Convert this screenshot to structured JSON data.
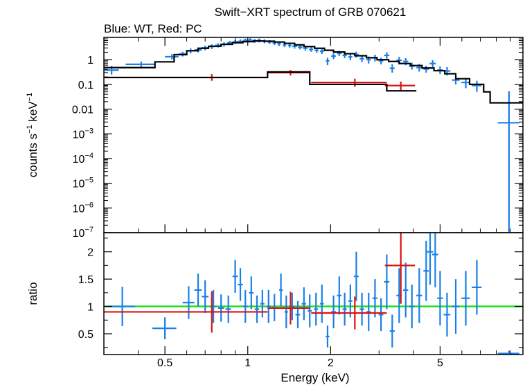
{
  "chart_data": [
    {
      "type": "scatter",
      "panel": "spectrum",
      "title": "Swift−XRT spectrum of GRB 070621",
      "subtitle": "Blue: WT, Red: PC",
      "xlabel": "Energy (keV)",
      "ylabel_main": "counts s",
      "ylabel_sup1": "−1",
      "ylabel_mid": " keV",
      "ylabel_sup2": "−1",
      "x_scale": "log",
      "y_scale": "log",
      "xlim": [
        0.3,
        10
      ],
      "ylim": [
        1e-07,
        8
      ],
      "yticks": [
        {
          "v": 1,
          "base": "1",
          "exp": ""
        },
        {
          "v": 0.1,
          "base": "0.1",
          "exp": ""
        },
        {
          "v": 0.01,
          "base": "0.01",
          "exp": ""
        },
        {
          "v": 0.001,
          "base": "10",
          "exp": "−3"
        },
        {
          "v": 0.0001,
          "base": "10",
          "exp": "−4"
        },
        {
          "v": 1e-05,
          "base": "10",
          "exp": "−5"
        },
        {
          "v": 1e-06,
          "base": "10",
          "exp": "−6"
        },
        {
          "v": 1e-07,
          "base": "10",
          "exp": "−7"
        }
      ],
      "series": [
        {
          "name": "WT",
          "color": "#1a7fe8",
          "points": [
            [
              0.32,
              0.02,
              0.38,
              0.18,
              0.13
            ],
            [
              0.41,
              0.05,
              0.65,
              0.2,
              0.15
            ],
            [
              0.53,
              0.03,
              1.32,
              0.35,
              0.3
            ],
            [
              0.58,
              0.02,
              1.7,
              0.4,
              0.35
            ],
            [
              0.62,
              0.02,
              2.3,
              0.6,
              0.5
            ],
            [
              0.66,
              0.02,
              2.5,
              0.6,
              0.5
            ],
            [
              0.7,
              0.02,
              3.0,
              0.7,
              0.6
            ],
            [
              0.74,
              0.02,
              3.4,
              0.8,
              0.7
            ],
            [
              0.78,
              0.02,
              3.8,
              0.8,
              0.7
            ],
            [
              0.82,
              0.02,
              4.2,
              0.9,
              0.8
            ],
            [
              0.86,
              0.02,
              4.8,
              1.0,
              0.9
            ],
            [
              0.9,
              0.02,
              5.2,
              1.0,
              0.9
            ],
            [
              0.94,
              0.02,
              5.5,
              1.1,
              1.0
            ],
            [
              0.98,
              0.02,
              6.0,
              1.2,
              1.0
            ],
            [
              1.02,
              0.02,
              6.2,
              1.2,
              1.0
            ],
            [
              1.06,
              0.02,
              5.8,
              1.1,
              1.0
            ],
            [
              1.1,
              0.02,
              6.0,
              1.2,
              1.0
            ],
            [
              1.15,
              0.02,
              5.6,
              1.1,
              1.0
            ],
            [
              1.2,
              0.02,
              5.2,
              1.0,
              0.9
            ],
            [
              1.25,
              0.02,
              4.8,
              1.0,
              0.9
            ],
            [
              1.3,
              0.02,
              4.4,
              0.9,
              0.8
            ],
            [
              1.36,
              0.02,
              4.0,
              0.9,
              0.8
            ],
            [
              1.42,
              0.02,
              3.8,
              0.8,
              0.7
            ],
            [
              1.48,
              0.03,
              3.5,
              0.8,
              0.7
            ],
            [
              1.55,
              0.03,
              3.2,
              0.7,
              0.6
            ],
            [
              1.62,
              0.03,
              2.9,
              0.7,
              0.6
            ],
            [
              1.7,
              0.03,
              2.6,
              0.6,
              0.5
            ],
            [
              1.78,
              0.03,
              2.4,
              0.6,
              0.5
            ],
            [
              1.86,
              0.03,
              2.2,
              0.6,
              0.5
            ],
            [
              1.95,
              0.03,
              0.9,
              0.3,
              0.3
            ],
            [
              2.05,
              0.04,
              1.4,
              0.4,
              0.35
            ],
            [
              2.15,
              0.04,
              1.8,
              0.5,
              0.4
            ],
            [
              2.25,
              0.04,
              1.5,
              0.4,
              0.35
            ],
            [
              2.36,
              0.04,
              1.3,
              0.4,
              0.35
            ],
            [
              2.48,
              0.05,
              1.6,
              0.5,
              0.4
            ],
            [
              2.6,
              0.05,
              1.1,
              0.35,
              0.3
            ],
            [
              2.75,
              0.05,
              1.0,
              0.35,
              0.3
            ],
            [
              2.9,
              0.06,
              1.2,
              0.4,
              0.35
            ],
            [
              3.05,
              0.06,
              0.9,
              0.3,
              0.25
            ],
            [
              3.2,
              0.07,
              1.5,
              0.5,
              0.4
            ],
            [
              3.35,
              0.07,
              0.45,
              0.2,
              0.15
            ],
            [
              3.55,
              0.08,
              0.95,
              0.35,
              0.3
            ],
            [
              3.75,
              0.08,
              0.85,
              0.3,
              0.25
            ],
            [
              3.95,
              0.09,
              0.55,
              0.2,
              0.15
            ],
            [
              4.2,
              0.1,
              0.48,
              0.2,
              0.15
            ],
            [
              4.45,
              0.1,
              0.42,
              0.15,
              0.12
            ],
            [
              4.7,
              0.12,
              0.7,
              0.25,
              0.2
            ],
            [
              5.0,
              0.12,
              0.38,
              0.15,
              0.12
            ],
            [
              5.3,
              0.15,
              0.35,
              0.15,
              0.12
            ],
            [
              5.7,
              0.18,
              0.15,
              0.07,
              0.05
            ],
            [
              6.2,
              0.22,
              0.12,
              0.06,
              0.05
            ],
            [
              6.8,
              0.28,
              0.09,
              0.05,
              0.04
            ],
            [
              8.9,
              0.8,
              0.0028,
              0.05,
              0.0028
            ]
          ]
        },
        {
          "name": "PC",
          "color": "#dd1111",
          "points": [
            [
              0.74,
              0.44,
              0.19,
              0.07,
              0.05
            ],
            [
              1.43,
              0.25,
              0.3,
              0.08,
              0.07
            ],
            [
              2.45,
              0.75,
              0.12,
              0.05,
              0.04
            ],
            [
              3.6,
              0.45,
              0.09,
              0.04,
              0.035
            ]
          ]
        }
      ],
      "model_wt": {
        "color": "#000000",
        "steps": [
          [
            0.3,
            0.48
          ],
          [
            0.38,
            0.48
          ],
          [
            0.46,
            0.82
          ],
          [
            0.54,
            1.6
          ],
          [
            0.6,
            2.3
          ],
          [
            0.66,
            2.9
          ],
          [
            0.72,
            3.5
          ],
          [
            0.8,
            4.2
          ],
          [
            0.88,
            4.9
          ],
          [
            0.96,
            5.4
          ],
          [
            1.05,
            5.7
          ],
          [
            1.15,
            5.6
          ],
          [
            1.25,
            5.2
          ],
          [
            1.36,
            4.6
          ],
          [
            1.48,
            4.0
          ],
          [
            1.6,
            3.4
          ],
          [
            1.75,
            2.9
          ],
          [
            1.9,
            2.4
          ],
          [
            2.05,
            2.05
          ],
          [
            2.25,
            1.75
          ],
          [
            2.45,
            1.45
          ],
          [
            2.7,
            1.2
          ],
          [
            2.95,
            1.0
          ],
          [
            3.25,
            0.85
          ],
          [
            3.55,
            0.7
          ],
          [
            3.9,
            0.58
          ],
          [
            4.3,
            0.46
          ],
          [
            4.75,
            0.36
          ],
          [
            5.2,
            0.27
          ],
          [
            5.7,
            0.17
          ],
          [
            6.4,
            0.1
          ],
          [
            7.2,
            0.05
          ],
          [
            7.6,
            0.018
          ],
          [
            10,
            0.018
          ]
        ]
      },
      "model_pc": {
        "color": "#000000",
        "steps": [
          [
            0.3,
            0.19
          ],
          [
            1.18,
            0.19
          ],
          [
            1.18,
            0.32
          ],
          [
            1.68,
            0.32
          ],
          [
            1.68,
            0.1
          ],
          [
            3.2,
            0.1
          ],
          [
            3.2,
            0.055
          ],
          [
            4.1,
            0.055
          ]
        ]
      }
    },
    {
      "type": "scatter",
      "panel": "ratio",
      "ylabel": "ratio",
      "x_scale": "log",
      "xlim": [
        0.3,
        10
      ],
      "ylim": [
        0.12,
        2.35
      ],
      "yticks": [
        0.5,
        1,
        1.5,
        2
      ],
      "xticks": [
        {
          "v": 0.5,
          "label": "0.5"
        },
        {
          "v": 1,
          "label": "1"
        },
        {
          "v": 2,
          "label": "2"
        },
        {
          "v": 5,
          "label": "5"
        }
      ],
      "reference_line": {
        "value": 1,
        "color": "#22dd22"
      },
      "series": [
        {
          "name": "WT",
          "color": "#1a7fe8",
          "points": [
            [
              0.35,
              0.04,
              1.0,
              0.36,
              0.36
            ],
            [
              0.5,
              0.05,
              0.6,
              0.2,
              0.2
            ],
            [
              0.61,
              0.03,
              1.07,
              0.3,
              0.3
            ],
            [
              0.66,
              0.02,
              1.3,
              0.3,
              0.3
            ],
            [
              0.7,
              0.02,
              1.18,
              0.3,
              0.3
            ],
            [
              0.75,
              0.02,
              1.0,
              0.3,
              0.3
            ],
            [
              0.8,
              0.02,
              0.97,
              0.25,
              0.25
            ],
            [
              0.85,
              0.02,
              0.95,
              0.25,
              0.25
            ],
            [
              0.9,
              0.02,
              1.55,
              0.3,
              0.3
            ],
            [
              0.94,
              0.02,
              1.4,
              0.3,
              0.3
            ],
            [
              0.98,
              0.02,
              1.0,
              0.3,
              0.3
            ],
            [
              1.03,
              0.02,
              1.25,
              0.3,
              0.3
            ],
            [
              1.08,
              0.02,
              0.95,
              0.25,
              0.25
            ],
            [
              1.13,
              0.02,
              1.05,
              0.25,
              0.25
            ],
            [
              1.19,
              0.02,
              1.0,
              0.3,
              0.3
            ],
            [
              1.25,
              0.02,
              0.98,
              0.25,
              0.25
            ],
            [
              1.32,
              0.02,
              1.3,
              0.3,
              0.3
            ],
            [
              1.38,
              0.02,
              0.9,
              0.3,
              0.3
            ],
            [
              1.45,
              0.03,
              1.0,
              0.25,
              0.25
            ],
            [
              1.52,
              0.03,
              0.85,
              0.25,
              0.25
            ],
            [
              1.6,
              0.03,
              1.05,
              0.3,
              0.3
            ],
            [
              1.68,
              0.03,
              0.92,
              0.3,
              0.3
            ],
            [
              1.77,
              0.03,
              0.95,
              0.3,
              0.3
            ],
            [
              1.86,
              0.03,
              1.05,
              0.35,
              0.35
            ],
            [
              1.95,
              0.03,
              0.45,
              0.2,
              0.2
            ],
            [
              2.05,
              0.04,
              0.9,
              0.3,
              0.3
            ],
            [
              2.15,
              0.04,
              1.2,
              0.35,
              0.35
            ],
            [
              2.25,
              0.04,
              0.95,
              0.3,
              0.3
            ],
            [
              2.36,
              0.04,
              1.1,
              0.3,
              0.3
            ],
            [
              2.48,
              0.05,
              1.55,
              0.45,
              0.45
            ],
            [
              2.6,
              0.05,
              0.95,
              0.3,
              0.3
            ],
            [
              2.75,
              0.05,
              0.9,
              0.35,
              0.35
            ],
            [
              2.9,
              0.06,
              1.15,
              0.35,
              0.35
            ],
            [
              3.05,
              0.06,
              0.85,
              0.3,
              0.3
            ],
            [
              3.2,
              0.07,
              1.45,
              0.5,
              0.5
            ],
            [
              3.35,
              0.07,
              0.55,
              0.3,
              0.3
            ],
            [
              3.55,
              0.08,
              1.2,
              0.5,
              0.5
            ],
            [
              3.75,
              0.08,
              1.3,
              0.5,
              0.5
            ],
            [
              3.95,
              0.09,
              1.0,
              0.4,
              0.4
            ],
            [
              4.2,
              0.1,
              1.2,
              0.5,
              0.5
            ],
            [
              4.45,
              0.1,
              1.65,
              0.55,
              0.55
            ],
            [
              4.6,
              0.12,
              2.0,
              0.6,
              0.6
            ],
            [
              4.8,
              0.12,
              1.95,
              0.6,
              0.6
            ],
            [
              5.0,
              0.12,
              1.15,
              0.5,
              0.5
            ],
            [
              5.3,
              0.15,
              0.85,
              0.4,
              0.4
            ],
            [
              5.7,
              0.18,
              1.0,
              0.5,
              0.5
            ],
            [
              6.2,
              0.22,
              1.15,
              0.5,
              0.5
            ],
            [
              6.8,
              0.28,
              1.35,
              0.5,
              0.5
            ],
            [
              8.9,
              0.8,
              0.14,
              0.05,
              0.02
            ]
          ]
        },
        {
          "name": "PC",
          "color": "#dd1111",
          "points": [
            [
              0.74,
              0.44,
              0.9,
              0.38,
              0.38
            ],
            [
              1.43,
              0.25,
              0.97,
              0.3,
              0.3
            ],
            [
              2.45,
              0.75,
              0.88,
              0.3,
              0.3
            ],
            [
              3.6,
              0.45,
              1.75,
              0.7,
              0.7
            ]
          ]
        }
      ]
    }
  ]
}
